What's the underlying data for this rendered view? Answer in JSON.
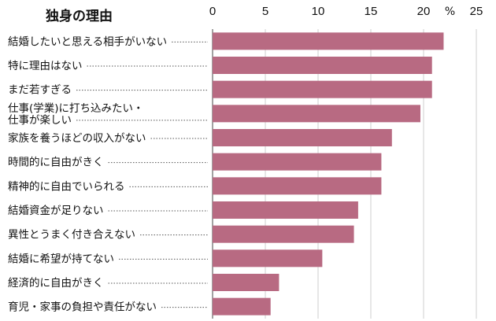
{
  "chart_data": {
    "type": "bar",
    "orientation": "horizontal",
    "title": "独身の理由",
    "unit": "%",
    "xlim": [
      0,
      25
    ],
    "ticks": [
      0,
      5,
      10,
      15,
      20,
      25
    ],
    "grid": true,
    "bar_color": "#b86a82",
    "categories": [
      [
        "結婚したいと思える相手がいない"
      ],
      [
        "特に理由はない"
      ],
      [
        "まだ若すぎる"
      ],
      [
        "仕事(学業)に打ち込みたい・",
        "仕事が楽しい"
      ],
      [
        "家族を養うほどの収入がない"
      ],
      [
        "時間的に自由がきく"
      ],
      [
        "精神的に自由でいられる"
      ],
      [
        "結婚資金が足りない"
      ],
      [
        "異性とうまく付き合えない"
      ],
      [
        "結婚に希望が持てない"
      ],
      [
        "経済的に自由がきく"
      ],
      [
        "育児・家事の負担や責任がない"
      ]
    ],
    "values": [
      21.9,
      20.8,
      20.8,
      19.7,
      17.0,
      16.0,
      16.0,
      13.8,
      13.4,
      10.4,
      6.3,
      5.5
    ]
  }
}
